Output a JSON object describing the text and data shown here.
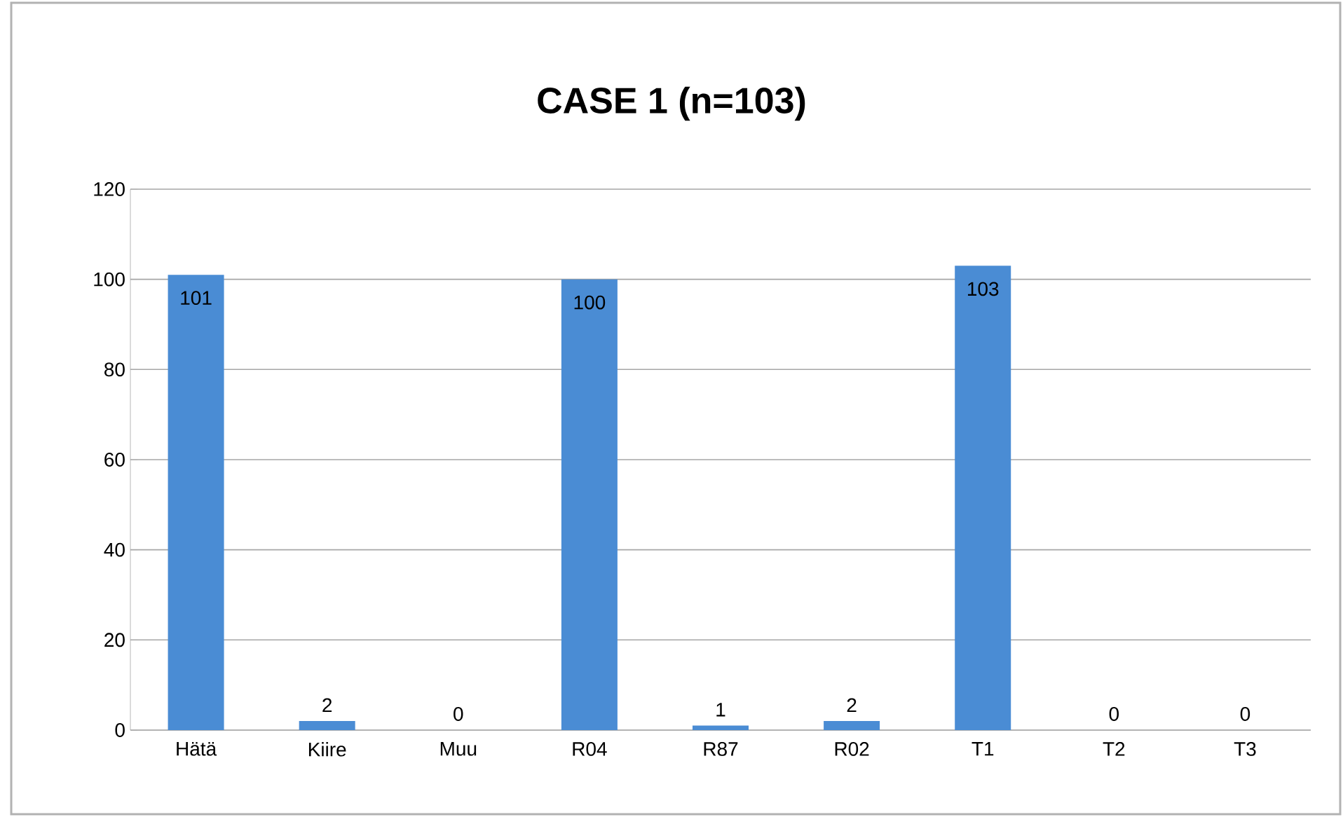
{
  "chart_data": {
    "type": "bar",
    "title": "CASE 1 (n=103)",
    "categories": [
      "Hätä",
      "Kiire",
      "Muu",
      "R04",
      "R87",
      "R02",
      "T1",
      "T2",
      "T3"
    ],
    "values": [
      101,
      2,
      0,
      100,
      1,
      2,
      103,
      0,
      0
    ],
    "color": "#4a8cd4",
    "ylim": [
      0,
      120
    ],
    "yticks": [
      0,
      20,
      40,
      60,
      80,
      100,
      120
    ],
    "grid": "y",
    "data_labels": true
  }
}
